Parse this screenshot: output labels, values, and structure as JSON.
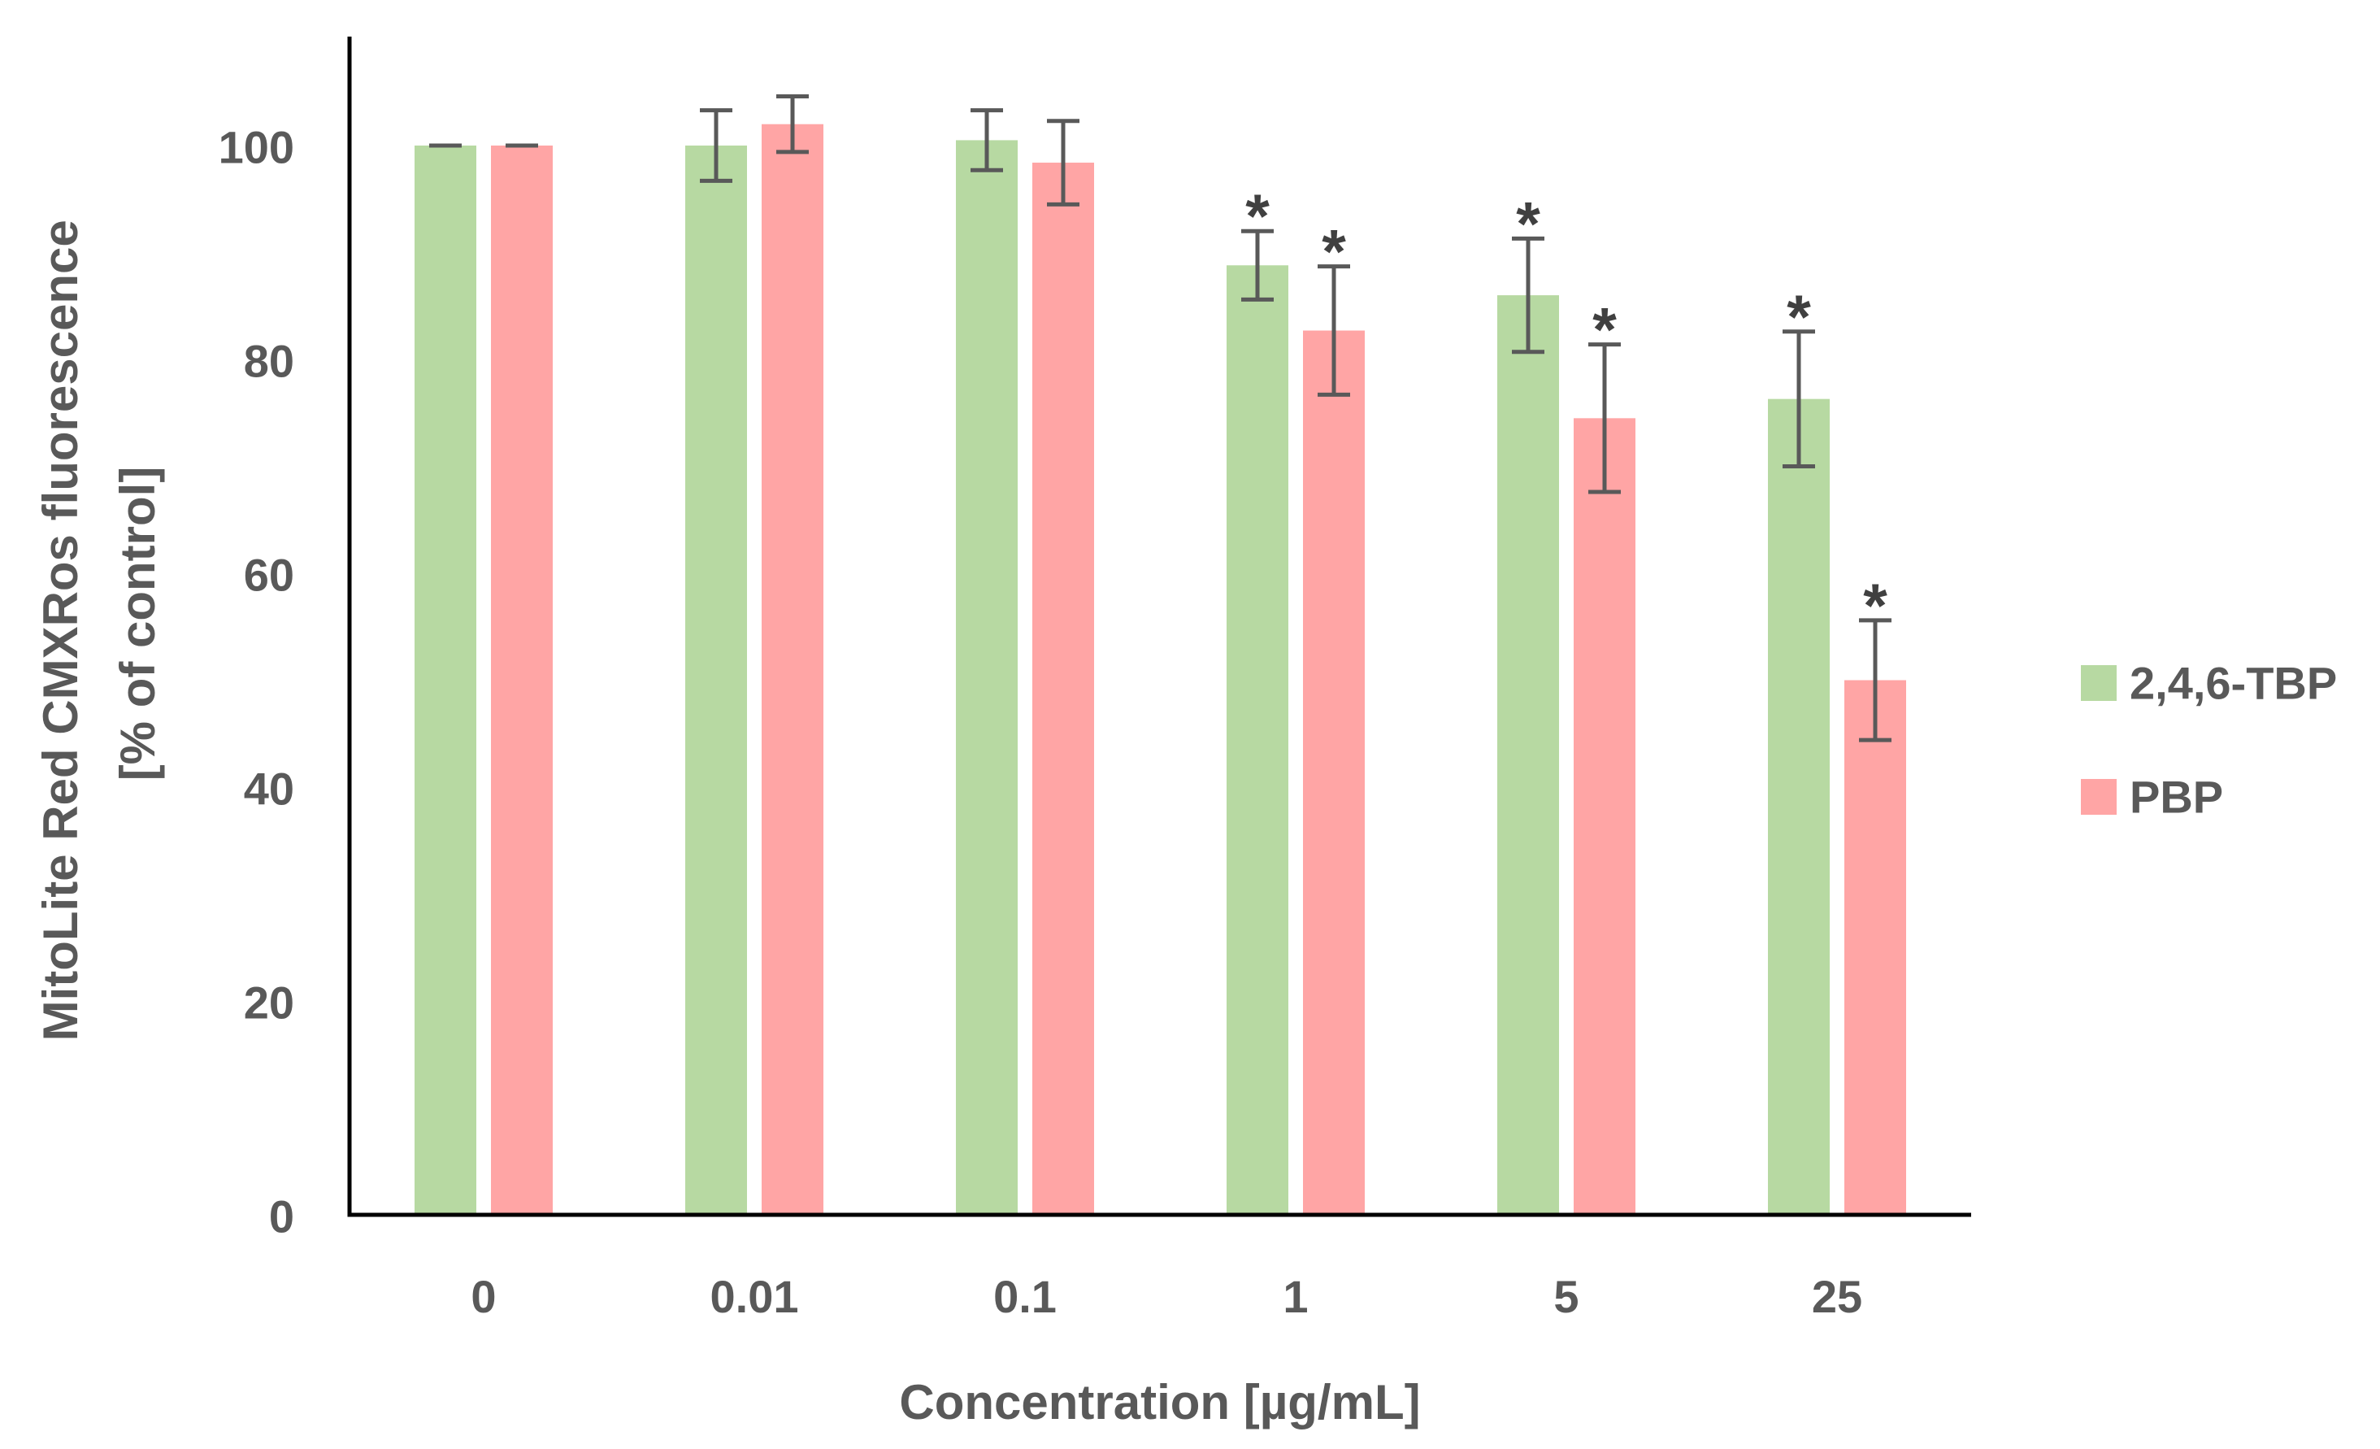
{
  "chart_data": {
    "type": "bar",
    "title": "",
    "categories": [
      "0",
      "0.01",
      "0.1",
      "1",
      "5",
      "25"
    ],
    "series": [
      {
        "name": "2,4,6-TBP",
        "color": "#b7d9a2",
        "values": [
          100,
          100,
          100.5,
          88.8,
          86.0,
          76.3
        ],
        "errors": [
          0,
          3.3,
          2.8,
          3.2,
          5.3,
          6.3
        ],
        "significant": [
          false,
          false,
          false,
          true,
          true,
          true
        ]
      },
      {
        "name": "PBP",
        "color": "#ffa5a5",
        "values": [
          100,
          102.0,
          98.4,
          82.7,
          74.5,
          50.0
        ],
        "errors": [
          0,
          2.6,
          3.9,
          6.0,
          6.9,
          5.6
        ],
        "significant": [
          false,
          false,
          false,
          true,
          true,
          true
        ]
      }
    ],
    "significance_marker": "*",
    "ylabel_lines": [
      "MitoLite Red CMXRos fluorescence",
      "[% of control]"
    ],
    "xlabel": "Concentration [µg/mL]",
    "ylim": [
      0,
      110
    ],
    "yticks": [
      0,
      20,
      40,
      60,
      80,
      100
    ],
    "grid": false,
    "legend_position": "right",
    "colors": {
      "axis": "#000000",
      "error_bar": "#595959",
      "text": "#595959"
    }
  }
}
